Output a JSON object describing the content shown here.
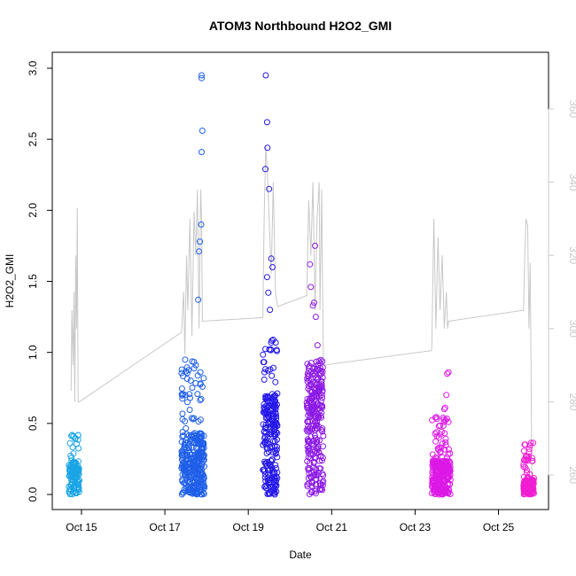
{
  "chart_data": {
    "type": "scatter",
    "title": "ATOM3 Northbound H2O2_GMI",
    "xlabel": "Date",
    "ylabel": "H2O2_GMI",
    "x_unit": "date (October)",
    "xlim": [
      "Oct 14.3",
      "Oct 26.2"
    ],
    "ylim": [
      0,
      3.0
    ],
    "y2lim": [
      252,
      372
    ],
    "x_ticks": [
      {
        "value": 15,
        "label": "Oct 15"
      },
      {
        "value": 17,
        "label": "Oct 17"
      },
      {
        "value": 19,
        "label": "Oct 19"
      },
      {
        "value": 21,
        "label": "Oct 21"
      },
      {
        "value": 23,
        "label": "Oct 23"
      },
      {
        "value": 25,
        "label": "Oct 25"
      }
    ],
    "y_ticks": [
      "0.0",
      "0.5",
      "1.0",
      "1.5",
      "2.0",
      "2.5",
      "3.0"
    ],
    "y2_ticks": [
      "260",
      "280",
      "300",
      "320",
      "340",
      "360"
    ],
    "grid": false,
    "legend": "none",
    "series": [
      {
        "role": "scatter",
        "color": "#1aa5e6",
        "segments": [
          {
            "x0": 14.7,
            "x1": 14.95,
            "n": 120,
            "median": 0.12,
            "max": 0.42,
            "peaks": []
          }
        ]
      },
      {
        "role": "scatter",
        "color": "#1f5fe8",
        "segments": [
          {
            "x0": 17.4,
            "x1": 17.95,
            "n": 330,
            "median": 0.22,
            "max": 0.95,
            "peaks": [
              [
                17.88,
                2.95
              ],
              [
                17.88,
                2.93
              ],
              [
                17.9,
                2.56
              ],
              [
                17.88,
                2.41
              ],
              [
                17.87,
                1.9
              ],
              [
                17.84,
                1.78
              ],
              [
                17.82,
                1.71
              ],
              [
                17.8,
                1.37
              ]
            ]
          }
        ]
      },
      {
        "role": "scatter",
        "color": "#2418e8",
        "segments": [
          {
            "x0": 19.35,
            "x1": 19.7,
            "n": 220,
            "median": 0.35,
            "max": 1.1,
            "peaks": [
              [
                19.42,
                2.95
              ],
              [
                19.45,
                2.62
              ],
              [
                19.46,
                2.44
              ],
              [
                19.41,
                2.29
              ],
              [
                19.5,
                2.15
              ],
              [
                19.55,
                1.66
              ],
              [
                19.58,
                1.6
              ],
              [
                19.45,
                1.53
              ],
              [
                19.48,
                1.42
              ],
              [
                19.52,
                1.3
              ]
            ]
          }
        ]
      },
      {
        "role": "scatter",
        "color": "#8c1ae6",
        "segments": [
          {
            "x0": 20.4,
            "x1": 20.8,
            "n": 260,
            "median": 0.45,
            "max": 0.95,
            "peaks": [
              [
                20.6,
                1.75
              ],
              [
                20.48,
                1.62
              ],
              [
                20.5,
                1.46
              ],
              [
                20.58,
                1.35
              ],
              [
                20.55,
                1.33
              ],
              [
                20.62,
                1.25
              ],
              [
                20.66,
                1.05
              ]
            ]
          }
        ]
      },
      {
        "role": "scatter",
        "color": "#dc19e6",
        "segments": [
          {
            "x0": 23.4,
            "x1": 23.85,
            "n": 280,
            "median": 0.12,
            "max": 0.55,
            "peaks": [
              [
                23.8,
                0.86
              ],
              [
                23.77,
                0.85
              ],
              [
                23.75,
                0.7
              ],
              [
                23.72,
                0.61
              ],
              [
                23.7,
                0.6
              ]
            ]
          }
        ]
      },
      {
        "role": "scatter",
        "color": "#f01ed2",
        "segments": [
          {
            "x0": 25.6,
            "x1": 25.85,
            "n": 200,
            "median": 0.05,
            "max": 0.37,
            "peaks": []
          }
        ]
      },
      {
        "role": "right-axis line",
        "color": "#c8c8c8",
        "trace": [
          [
            14.75,
            283
          ],
          [
            14.77,
            305
          ],
          [
            14.8,
            290
          ],
          [
            14.82,
            310
          ],
          [
            14.84,
            280
          ],
          [
            14.86,
            320
          ],
          [
            14.88,
            300
          ],
          [
            14.9,
            333
          ],
          [
            14.92,
            280
          ],
          [
            14.95,
            280
          ],
          [
            17.4,
            299
          ],
          [
            17.45,
            310
          ],
          [
            17.48,
            293
          ],
          [
            17.52,
            320
          ],
          [
            17.55,
            305
          ],
          [
            17.6,
            330
          ],
          [
            17.65,
            298
          ],
          [
            17.7,
            332
          ],
          [
            17.74,
            320
          ],
          [
            17.78,
            338
          ],
          [
            17.82,
            300
          ],
          [
            17.86,
            338
          ],
          [
            17.88,
            330
          ],
          [
            17.9,
            302
          ],
          [
            19.35,
            303
          ],
          [
            19.38,
            330
          ],
          [
            19.42,
            350
          ],
          [
            19.46,
            342
          ],
          [
            19.5,
            330
          ],
          [
            19.55,
            315
          ],
          [
            19.6,
            340
          ],
          [
            19.65,
            310
          ],
          [
            19.7,
            306
          ],
          [
            20.4,
            309
          ],
          [
            20.45,
            335
          ],
          [
            20.5,
            320
          ],
          [
            20.55,
            340
          ],
          [
            20.6,
            305
          ],
          [
            20.65,
            330
          ],
          [
            20.7,
            340
          ],
          [
            20.72,
            305
          ],
          [
            20.76,
            338
          ],
          [
            20.8,
            290
          ],
          [
            23.4,
            294
          ],
          [
            23.45,
            330
          ],
          [
            23.5,
            300
          ],
          [
            23.55,
            325
          ],
          [
            23.6,
            305
          ],
          [
            23.65,
            320
          ],
          [
            23.7,
            300
          ],
          [
            23.75,
            310
          ],
          [
            23.78,
            300
          ],
          [
            23.8,
            302
          ],
          [
            25.6,
            305
          ],
          [
            25.63,
            320
          ],
          [
            25.66,
            330
          ],
          [
            25.7,
            328
          ],
          [
            25.73,
            300
          ],
          [
            25.76,
            318
          ],
          [
            25.8,
            260
          ],
          [
            25.85,
            256
          ]
        ]
      }
    ]
  }
}
